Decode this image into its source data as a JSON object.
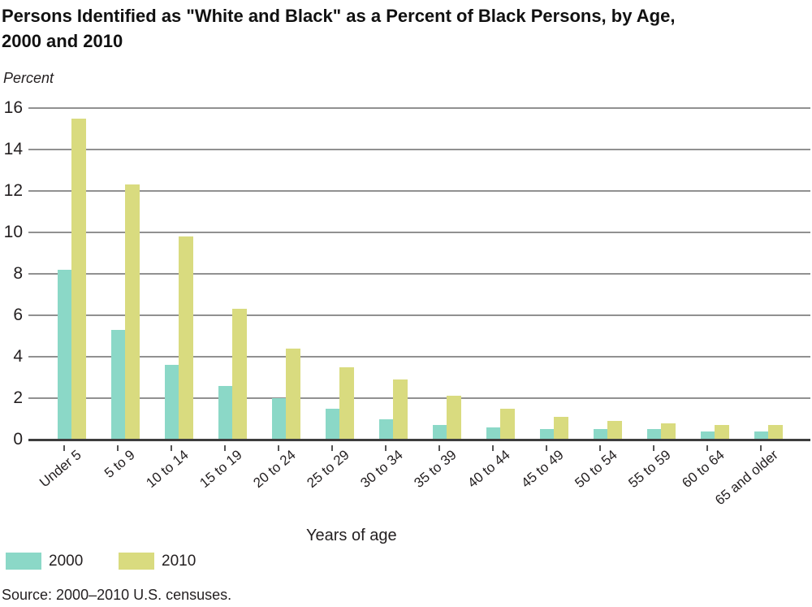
{
  "title": {
    "line1": "Persons Identified as \"White and Black\" as a Percent of Black Persons, by Age,",
    "line2": "2000 and 2010"
  },
  "y_axis_unit_label": "Percent",
  "x_axis_title": "Years of age",
  "source": "Source: 2000–2010 U.S. censuses.",
  "colors": {
    "series_2000": "#8bd8c7",
    "series_2010": "#d9db7f",
    "gridline": "#919191",
    "axis": "#3d3d3d",
    "text": "#231f20"
  },
  "legend": {
    "items": [
      {
        "label": "2000",
        "color": "#8bd8c7"
      },
      {
        "label": "2010",
        "color": "#d9db7f"
      }
    ]
  },
  "chart_data": {
    "type": "bar",
    "title": "Persons Identified as \"White and Black\" as a Percent of Black Persons, by Age, 2000 and 2010",
    "xlabel": "Years of age",
    "ylabel": "Percent",
    "ylim": [
      0,
      16
    ],
    "yticks": [
      0,
      2,
      4,
      6,
      8,
      10,
      12,
      14,
      16
    ],
    "grid": true,
    "legend_position": "bottom-left",
    "categories": [
      "Under 5",
      "5 to 9",
      "10 to 14",
      "15 to 19",
      "20 to 24",
      "25 to 29",
      "30 to 34",
      "35 to 39",
      "40 to 44",
      "45 to 49",
      "50 to 54",
      "55 to 59",
      "60 to 64",
      "65 and older"
    ],
    "series": [
      {
        "name": "2000",
        "color": "#8bd8c7",
        "values": [
          8.2,
          5.3,
          3.6,
          2.6,
          2.0,
          1.5,
          1.0,
          0.7,
          0.6,
          0.5,
          0.5,
          0.5,
          0.4,
          0.4
        ]
      },
      {
        "name": "2010",
        "color": "#d9db7f",
        "values": [
          15.5,
          12.3,
          9.8,
          6.3,
          4.4,
          3.5,
          2.9,
          2.1,
          1.5,
          1.1,
          0.9,
          0.8,
          0.7,
          0.7
        ]
      }
    ]
  }
}
